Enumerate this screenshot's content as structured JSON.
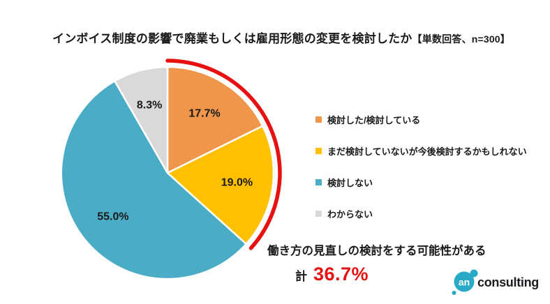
{
  "title": {
    "main": "インボイス制度の影響で廃業もしくは雇用形態の変更を検討したか",
    "note": "【単数回答、n=300】"
  },
  "chart_data": {
    "type": "pie",
    "categories": [
      "検討した/検討している",
      "まだ検討していないが今後検討するかもしれない",
      "検討しない",
      "わからない"
    ],
    "values": [
      17.7,
      19.0,
      55.0,
      8.3
    ],
    "labels": [
      "17.7%",
      "19.0%",
      "55.0%",
      "8.3%"
    ],
    "colors": [
      "#F0964B",
      "#FFC000",
      "#4BACC6",
      "#D9D9D9"
    ],
    "unit": "%",
    "sample_note": "単数回答、n=300",
    "start_angle_deg": 0,
    "direction": "clockwise",
    "legend_position": "right",
    "slice_border_color": "#FFFFFF",
    "label_color": "#1A1A1A",
    "highlight_arc": {
      "covers_categories": [
        "検討した/検討している",
        "まだ検討していないが今後検討するかもしれない"
      ],
      "total_percent": 36.7,
      "color": "#E81111",
      "start_deg": 0,
      "end_deg": 132.1
    }
  },
  "annotation": {
    "line1": "働き方の見直しの検討をする可能性がある",
    "total_prefix": "計",
    "total_value": "36.7%",
    "total_color": "#E81111"
  },
  "logo": {
    "mark": "an",
    "text": "consulting",
    "mark_color": "#29A9C6"
  }
}
